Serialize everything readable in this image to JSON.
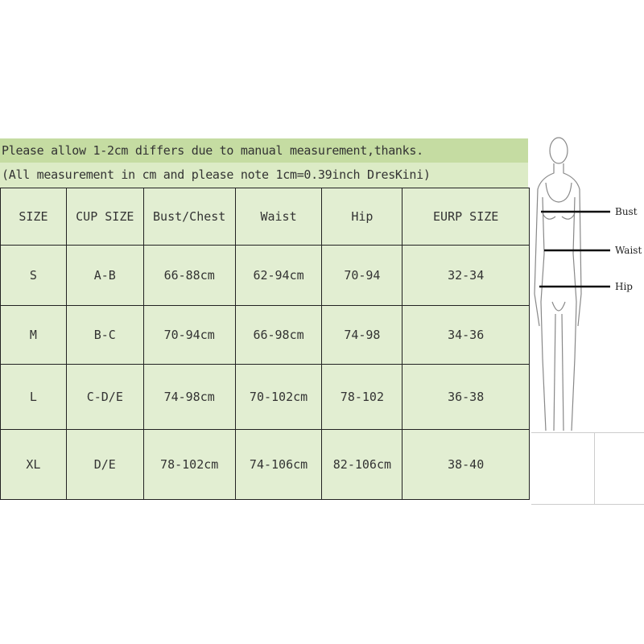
{
  "notes": {
    "line1": "Please allow 1-2cm differs due to manual measurement,thanks.",
    "line2": "(All measurement in cm and please note 1cm=0.39inch DresKini)"
  },
  "table": {
    "headers": [
      "SIZE",
      "CUP SIZE",
      "Bust/Chest",
      "Waist",
      "Hip",
      "EURP SIZE"
    ],
    "rows": [
      [
        "S",
        "A-B",
        "66-88cm",
        "62-94cm",
        "70-94",
        "32-34"
      ],
      [
        "M",
        "B-C",
        "70-94cm",
        "66-98cm",
        "74-98",
        "34-36"
      ],
      [
        "L",
        "C-D/E",
        "74-98cm",
        "70-102cm",
        "78-102",
        "36-38"
      ],
      [
        "XL",
        "D/E",
        "78-102cm",
        "74-106cm",
        "82-106cm",
        "38-40"
      ]
    ]
  },
  "figure": {
    "labels": {
      "bust": "Bust",
      "waist": "Waist",
      "hip": "Hip"
    }
  },
  "colors": {
    "header_band": "#c5dca2",
    "cell": "#e2eed2"
  }
}
